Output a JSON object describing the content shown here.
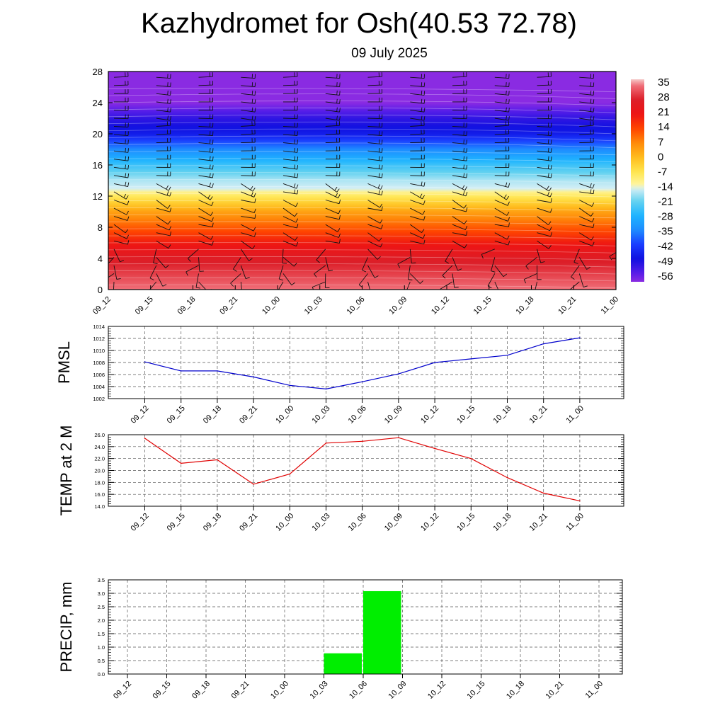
{
  "header": {
    "title": "Kazhydromet for Osh(40.53 72.78)",
    "date": "09 July 2025"
  },
  "colors": {
    "pmsl_line": "#0000cc",
    "temp_line": "#e00000",
    "precip_bar": "#00ee00",
    "grid": "#555555"
  },
  "chart_data": [
    {
      "type": "heatmap",
      "name": "upper-air-time-section",
      "x_ticks": [
        "09_12",
        "09_15",
        "09_18",
        "09_21",
        "10_00",
        "10_03",
        "10_06",
        "10_09",
        "10_12",
        "10_15",
        "10_18",
        "10_21",
        "11_00"
      ],
      "y_ticks": [
        0,
        4,
        8,
        12,
        16,
        20,
        24,
        28
      ],
      "ylim": [
        0,
        28
      ],
      "colorbar": {
        "labels": [
          "35",
          "28",
          "21",
          "14",
          "7",
          "0",
          "-7",
          "-14",
          "-21",
          "-28",
          "-35",
          "-42",
          "-49",
          "-56"
        ],
        "range": [
          -60,
          38
        ],
        "stops": [
          {
            "v": -60,
            "c": "#8a2be2"
          },
          {
            "v": -56,
            "c": "#5a1ee8"
          },
          {
            "v": -49,
            "c": "#1010e0"
          },
          {
            "v": -42,
            "c": "#1a3cff"
          },
          {
            "v": -35,
            "c": "#1e8cff"
          },
          {
            "v": -28,
            "c": "#1eb4ff"
          },
          {
            "v": -21,
            "c": "#64d2f0"
          },
          {
            "v": -15,
            "c": "#d2eef5"
          },
          {
            "v": -13,
            "c": "#fff5a0"
          },
          {
            "v": -7,
            "c": "#ffe650"
          },
          {
            "v": 0,
            "c": "#ffbe1e"
          },
          {
            "v": 7,
            "c": "#ff8c0a"
          },
          {
            "v": 14,
            "c": "#ff4600"
          },
          {
            "v": 21,
            "c": "#ee1414"
          },
          {
            "v": 28,
            "c": "#dc1e28"
          },
          {
            "v": 35,
            "c": "#f06e78"
          },
          {
            "v": 38,
            "c": "#f5c8c8"
          }
        ]
      },
      "temperature_profile": {
        "heights": [
          0,
          2,
          4,
          6,
          8,
          10,
          12,
          13,
          14,
          16,
          18,
          20,
          22,
          24,
          28
        ],
        "values": [
          35,
          31,
          27,
          20,
          12,
          4,
          -8,
          -15,
          -17,
          -25,
          -35,
          -47,
          -52,
          -60,
          -60
        ]
      }
    },
    {
      "type": "line",
      "name": "pmsl",
      "ylabel": "PMSL",
      "categories": [
        "09_12",
        "09_15",
        "09_18",
        "09_21",
        "10_00",
        "10_03",
        "10_06",
        "10_09",
        "10_12",
        "10_15",
        "10_18",
        "10_21",
        "11_00"
      ],
      "values": [
        1008.1,
        1006.6,
        1006.6,
        1005.6,
        1004.2,
        1003.6,
        1004.8,
        1006.1,
        1008.0,
        1008.6,
        1009.2,
        1011.1,
        1012.1
      ],
      "ylim": [
        1002,
        1014
      ],
      "y_ticks": [
        "1002",
        "1004",
        "1006",
        "1008",
        "1010",
        "1012",
        "1014"
      ],
      "grid": true
    },
    {
      "type": "line",
      "name": "temp-2m",
      "ylabel": "TEMP at 2 M",
      "categories": [
        "09_12",
        "09_15",
        "09_18",
        "09_21",
        "10_00",
        "10_03",
        "10_06",
        "10_09",
        "10_12",
        "10_15",
        "10_18",
        "10_21",
        "11_00"
      ],
      "values": [
        25.4,
        21.2,
        21.8,
        17.7,
        19.4,
        24.6,
        24.9,
        25.5,
        23.7,
        22.0,
        18.8,
        16.2,
        14.9
      ],
      "ylim": [
        14,
        26
      ],
      "y_ticks": [
        "14.0",
        "16.0",
        "18.0",
        "20.0",
        "22.0",
        "24.0",
        "26.0"
      ],
      "grid": true
    },
    {
      "type": "bar",
      "name": "precip",
      "ylabel": "PRECIP, mm",
      "categories": [
        "09_12",
        "09_15",
        "09_18",
        "09_21",
        "10_00",
        "10_03",
        "10_06",
        "10_09",
        "10_12",
        "10_15",
        "10_18",
        "10_21",
        "11_00"
      ],
      "values": [
        0,
        0,
        0,
        0,
        0,
        0,
        0.77,
        3.08,
        0,
        0,
        0,
        0,
        0
      ],
      "ylim": [
        0,
        3.5
      ],
      "y_ticks": [
        "0.0",
        "0.5",
        "1.0",
        "1.5",
        "2.0",
        "2.5",
        "3.0",
        "3.5"
      ],
      "grid": true
    }
  ]
}
